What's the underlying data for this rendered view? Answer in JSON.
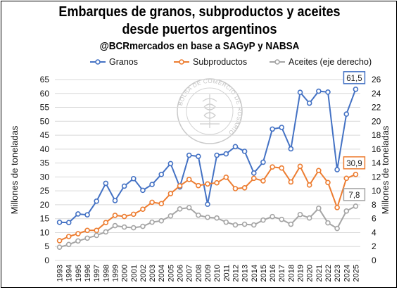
{
  "title_line1": "Embarques de granos, subproductos y aceites",
  "title_line2": "desde puertos argentinos",
  "subtitle": "@BCRmercados en base a SAGyP y NABSA",
  "watermark": {
    "text": "BOLSA DE COMERCIO DE ROSARIO",
    "icon": "caduceus-icon"
  },
  "chart_data": {
    "type": "line",
    "categories": [
      "1993",
      "1994",
      "1995",
      "1996",
      "1997",
      "1998",
      "1999",
      "2000",
      "2001",
      "2002",
      "2003",
      "2004",
      "2005",
      "2006",
      "2007",
      "2008",
      "2009",
      "2010",
      "2011",
      "2012",
      "2013",
      "2014",
      "2015",
      "2016",
      "2017",
      "2018",
      "2019",
      "2020",
      "2021",
      "2022",
      "2023",
      "2024",
      "2025"
    ],
    "series": [
      {
        "name": "Granos",
        "axis": "left",
        "color": "#4472C4",
        "values": [
          13.7,
          13.6,
          16.7,
          16.4,
          21.3,
          27.7,
          21.5,
          26.7,
          29.4,
          25.2,
          27.3,
          30.9,
          34.8,
          26.4,
          37.8,
          37.4,
          20.2,
          37.8,
          38.3,
          40.9,
          39.2,
          31.4,
          35.3,
          47.2,
          47.8,
          40.1,
          60.4,
          56.5,
          60.8,
          60.5,
          32.6,
          52.6,
          61.5
        ],
        "last_label": "61,5"
      },
      {
        "name": "Subproductos",
        "axis": "left",
        "color": "#ED7D31",
        "values": [
          7.1,
          8.6,
          9.6,
          10.8,
          10.8,
          13.6,
          16.2,
          15.8,
          16.6,
          18.4,
          20.9,
          20.4,
          24.0,
          26.8,
          29.1,
          26.9,
          27.5,
          27.9,
          29.9,
          25.8,
          26.1,
          29.5,
          28.6,
          33.6,
          33.2,
          28.2,
          33.8,
          27.1,
          32.3,
          28.0,
          19.0,
          29.5,
          30.9
        ],
        "last_label": "30,9"
      },
      {
        "name": "Aceites (eje derecho)",
        "axis": "right",
        "color": "#A5A5A5",
        "values": [
          1.9,
          2.3,
          2.8,
          3.2,
          3.6,
          4.1,
          5.0,
          4.8,
          4.7,
          4.9,
          5.5,
          5.7,
          6.4,
          7.4,
          7.6,
          6.5,
          6.2,
          6.1,
          5.5,
          5.1,
          5.2,
          5.1,
          5.8,
          6.3,
          5.9,
          5.2,
          6.6,
          6.1,
          7.5,
          5.4,
          4.6,
          7.1,
          7.8
        ],
        "last_label": "7,8"
      }
    ],
    "ylabel": "Millones de toneladas",
    "y2label": "Millones de toneladas",
    "ylim": [
      0,
      65
    ],
    "yticks": [
      0,
      5,
      10,
      15,
      20,
      25,
      30,
      35,
      40,
      45,
      50,
      55,
      60,
      65
    ],
    "y2lim": [
      0,
      26
    ],
    "y2ticks": [
      0,
      2,
      4,
      6,
      8,
      10,
      12,
      14,
      16,
      18,
      20,
      22,
      24,
      26
    ],
    "grid": true,
    "legend_position": "top"
  }
}
